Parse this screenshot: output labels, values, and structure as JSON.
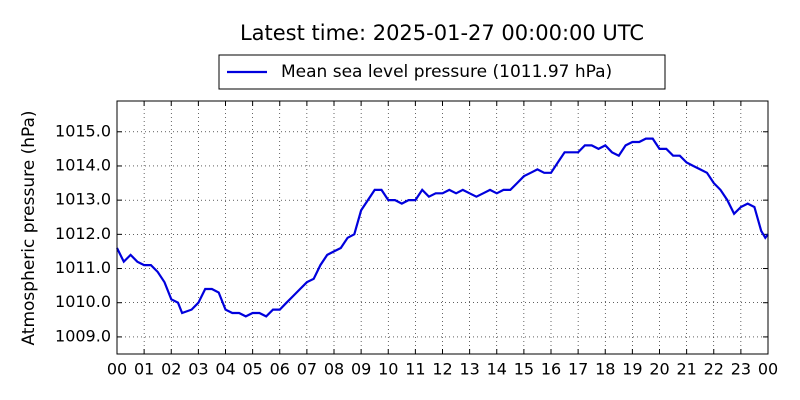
{
  "chart_data": {
    "type": "line",
    "title": "Latest time: 2025-01-27 00:00:00 UTC",
    "y_label": "Atmospheric pressure (hPa)",
    "legend": "top",
    "grid": true,
    "xlim": [
      0,
      24
    ],
    "ylim": [
      1008.5,
      1015.9
    ],
    "xticks": [
      {
        "value": 0,
        "label": "00"
      },
      {
        "value": 1,
        "label": "01"
      },
      {
        "value": 2,
        "label": "02"
      },
      {
        "value": 3,
        "label": "03"
      },
      {
        "value": 4,
        "label": "04"
      },
      {
        "value": 5,
        "label": "05"
      },
      {
        "value": 6,
        "label": "06"
      },
      {
        "value": 7,
        "label": "07"
      },
      {
        "value": 8,
        "label": "08"
      },
      {
        "value": 9,
        "label": "09"
      },
      {
        "value": 10,
        "label": "10"
      },
      {
        "value": 11,
        "label": "11"
      },
      {
        "value": 12,
        "label": "12"
      },
      {
        "value": 13,
        "label": "13"
      },
      {
        "value": 14,
        "label": "14"
      },
      {
        "value": 15,
        "label": "15"
      },
      {
        "value": 16,
        "label": "16"
      },
      {
        "value": 17,
        "label": "17"
      },
      {
        "value": 18,
        "label": "18"
      },
      {
        "value": 19,
        "label": "19"
      },
      {
        "value": 20,
        "label": "20"
      },
      {
        "value": 21,
        "label": "21"
      },
      {
        "value": 22,
        "label": "22"
      },
      {
        "value": 23,
        "label": "23"
      },
      {
        "value": 24,
        "label": "00"
      }
    ],
    "yticks": [
      {
        "value": 1009,
        "label": "1009.0"
      },
      {
        "value": 1010,
        "label": "1010.0"
      },
      {
        "value": 1011,
        "label": "1011.0"
      },
      {
        "value": 1012,
        "label": "1012.0"
      },
      {
        "value": 1013,
        "label": "1013.0"
      },
      {
        "value": 1014,
        "label": "1014.0"
      },
      {
        "value": 1015,
        "label": "1015.0"
      }
    ],
    "x": [
      0,
      0.25,
      0.5,
      0.75,
      1,
      1.25,
      1.5,
      1.75,
      2,
      2.25,
      2.4,
      2.75,
      3,
      3.25,
      3.5,
      3.75,
      4,
      4.25,
      4.5,
      4.75,
      5,
      5.25,
      5.5,
      5.75,
      6,
      6.25,
      6.5,
      6.75,
      7,
      7.25,
      7.5,
      7.75,
      8,
      8.25,
      8.5,
      8.75,
      9,
      9.25,
      9.5,
      9.75,
      10,
      10.25,
      10.5,
      10.75,
      11,
      11.25,
      11.5,
      11.75,
      12,
      12.25,
      12.5,
      12.75,
      13,
      13.25,
      13.5,
      13.75,
      14,
      14.25,
      14.5,
      14.75,
      15,
      15.25,
      15.5,
      15.75,
      16,
      16.25,
      16.5,
      16.75,
      17,
      17.25,
      17.5,
      17.75,
      18,
      18.25,
      18.5,
      18.75,
      19,
      19.25,
      19.5,
      19.75,
      20,
      20.25,
      20.5,
      20.75,
      21,
      21.25,
      21.5,
      21.75,
      22,
      22.25,
      22.5,
      22.75,
      23,
      23.25,
      23.5,
      23.75,
      23.9,
      24
    ],
    "series": [
      {
        "name": "Mean sea level pressure (1011.97 hPa)",
        "color": "#0000dd",
        "values": [
          1011.6,
          1011.2,
          1011.4,
          1011.2,
          1011.1,
          1011.1,
          1010.9,
          1010.6,
          1010.1,
          1010.0,
          1009.7,
          1009.8,
          1010.0,
          1010.4,
          1010.4,
          1010.3,
          1009.8,
          1009.7,
          1009.7,
          1009.6,
          1009.7,
          1009.7,
          1009.6,
          1009.8,
          1009.8,
          1010.0,
          1010.2,
          1010.4,
          1010.6,
          1010.7,
          1011.1,
          1011.4,
          1011.5,
          1011.6,
          1011.9,
          1012.0,
          1012.7,
          1013.0,
          1013.3,
          1013.3,
          1013.0,
          1013.0,
          1012.9,
          1013.0,
          1013.0,
          1013.3,
          1013.1,
          1013.2,
          1013.2,
          1013.3,
          1013.2,
          1013.3,
          1013.2,
          1013.1,
          1013.2,
          1013.3,
          1013.2,
          1013.3,
          1013.3,
          1013.5,
          1013.7,
          1013.8,
          1013.9,
          1013.8,
          1013.8,
          1014.1,
          1014.4,
          1014.4,
          1014.4,
          1014.6,
          1014.6,
          1014.5,
          1014.6,
          1014.4,
          1014.3,
          1014.6,
          1014.7,
          1014.7,
          1014.8,
          1014.8,
          1014.5,
          1014.5,
          1014.3,
          1014.3,
          1014.1,
          1014.0,
          1013.9,
          1013.8,
          1013.5,
          1013.3,
          1013.0,
          1012.6,
          1012.8,
          1012.9,
          1012.8,
          1012.1,
          1011.9,
          1012.0
        ]
      }
    ]
  }
}
